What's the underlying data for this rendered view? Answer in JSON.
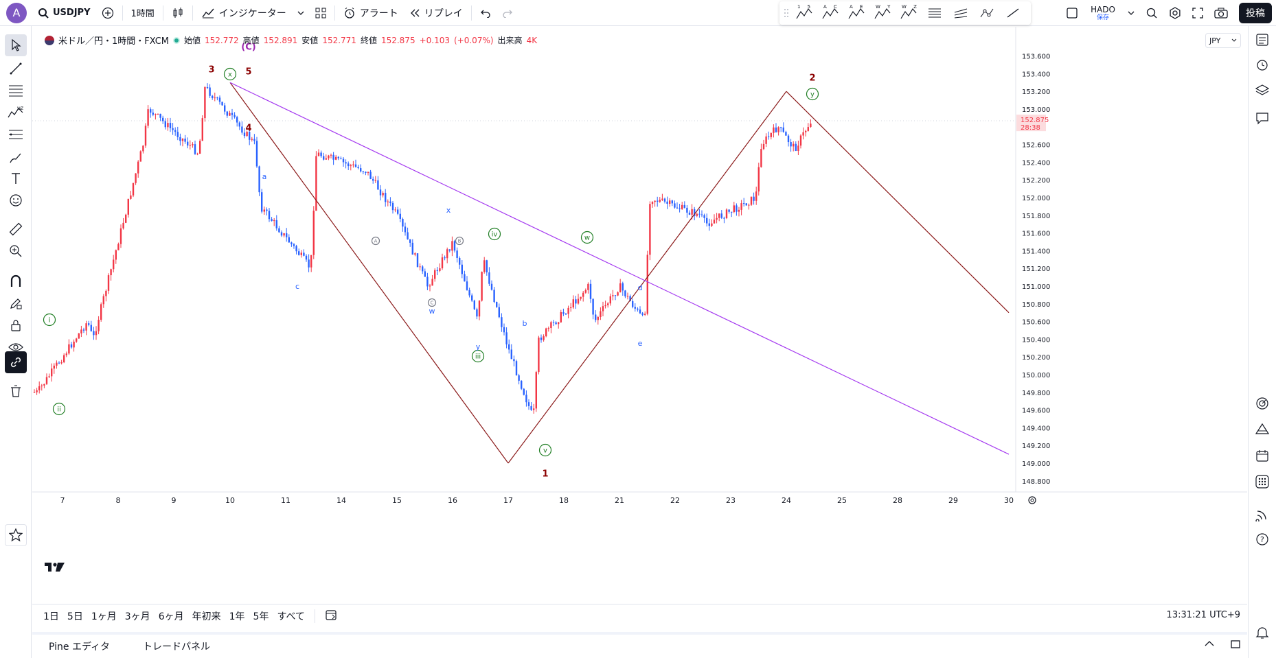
{
  "header": {
    "avatar_letter": "A",
    "symbol": "USDJPY",
    "interval": "1時間",
    "indicators_label": "インジケーター",
    "alert_label": "アラート",
    "replay_label": "リプレイ",
    "layout_name": "HADO",
    "layout_status": "保存",
    "post_label": "投稿",
    "drawing_tools": [
      {
        "icon": "elliott-impulse-icon",
        "label": "1 5"
      },
      {
        "icon": "elliott-correction-icon",
        "label": "A C"
      },
      {
        "icon": "elliott-triangle-icon",
        "label": "A E"
      },
      {
        "icon": "elliott-double-combo-icon",
        "label": "W Y"
      },
      {
        "icon": "elliott-triple-combo-icon",
        "label": "W Z"
      }
    ]
  },
  "legend": {
    "title": "米ドル／円・1時間・FXCM",
    "open_label": "始値",
    "open": "152.772",
    "high_label": "高値",
    "high": "152.891",
    "low_label": "安値",
    "low": "152.771",
    "close_label": "終値",
    "close": "152.875",
    "change": "+0.103",
    "change_pct": "(+0.07%)",
    "volume_label": "出来高",
    "volume": "4K"
  },
  "currency_button": "JPY",
  "price_tag": {
    "price": "152.875",
    "countdown": "28:38"
  },
  "range_bar": {
    "ranges": [
      "1日",
      "5日",
      "1ヶ月",
      "3ヶ月",
      "6ヶ月",
      "年初来",
      "1年",
      "5年",
      "すべて"
    ],
    "clock": "13:31:21 UTC+9"
  },
  "bottom_panel": {
    "tabs": [
      "Pine エディタ",
      "トレードパネル"
    ]
  },
  "colors": {
    "up": "#f23645",
    "down": "#2962ff",
    "wave_line": "#8b1a1a",
    "trend_line": "#a53bf0",
    "wave_green": "#1e7d22",
    "wave_blue": "#2962ff",
    "wave_red": "#8b0000",
    "wave_purple": "#9c27b0"
  },
  "chart_data": {
    "type": "candlestick",
    "symbol": "USDJPY",
    "interval": "1時間",
    "y_ticks": [
      153.6,
      153.4,
      153.2,
      153.0,
      152.6,
      152.4,
      152.2,
      152.0,
      151.8,
      151.6,
      151.4,
      151.2,
      151.0,
      150.8,
      150.6,
      150.4,
      150.2,
      150.0,
      149.8,
      149.6,
      149.4,
      149.2,
      149.0,
      148.8
    ],
    "x_ticks": [
      "7",
      "8",
      "9",
      "10",
      "11",
      "14",
      "15",
      "16",
      "17",
      "18",
      "21",
      "22",
      "23",
      "24",
      "25",
      "28",
      "29",
      "30"
    ],
    "last_price": 152.875,
    "price_path": [
      {
        "date": "7",
        "price": 149.8
      },
      {
        "date": "7",
        "price": 150.6
      },
      {
        "date": "8",
        "price": 150.4
      },
      {
        "date": "8",
        "price": 152.6
      },
      {
        "date": "9",
        "price": 153.0
      },
      {
        "date": "9",
        "price": 152.5
      },
      {
        "date": "10",
        "price": 153.25
      },
      {
        "date": "10",
        "price": 152.6
      },
      {
        "date": "11",
        "price": 151.9
      },
      {
        "date": "11",
        "price": 151.2
      },
      {
        "date": "14",
        "price": 152.5
      },
      {
        "date": "14",
        "price": 152.3
      },
      {
        "date": "15",
        "price": 151.8
      },
      {
        "date": "16",
        "price": 151.0
      },
      {
        "date": "16",
        "price": 151.5
      },
      {
        "date": "16",
        "price": 150.6
      },
      {
        "date": "17",
        "price": 151.3
      },
      {
        "date": "17",
        "price": 150.3
      },
      {
        "date": "17",
        "price": 149.5
      },
      {
        "date": "18",
        "price": 150.4
      },
      {
        "date": "18",
        "price": 151.0
      },
      {
        "date": "21",
        "price": 150.6
      },
      {
        "date": "21",
        "price": 151.0
      },
      {
        "date": "21",
        "price": 150.6
      },
      {
        "date": "22",
        "price": 152.0
      },
      {
        "date": "22",
        "price": 151.8
      },
      {
        "date": "23",
        "price": 151.7
      },
      {
        "date": "23",
        "price": 152.0
      },
      {
        "date": "24",
        "price": 152.6
      },
      {
        "date": "24",
        "price": 152.8
      },
      {
        "date": "24",
        "price": 152.55
      },
      {
        "date": "24",
        "price": 152.875
      }
    ],
    "wave_lines": [
      {
        "name": "5-to-1",
        "from": {
          "date": "10",
          "price": 153.3
        },
        "to": {
          "date": "17",
          "price": 149.0
        }
      },
      {
        "name": "1-to-2",
        "from": {
          "date": "17",
          "price": 149.0
        },
        "to": {
          "date": "24",
          "price": 153.2
        }
      },
      {
        "name": "2-onward",
        "from": {
          "date": "24",
          "price": 153.2
        },
        "to": {
          "date": "30",
          "price": 150.7
        }
      }
    ],
    "trend_line": {
      "from": {
        "date": "10",
        "price": 153.3
      },
      "to": {
        "date": "30",
        "price": 149.1
      }
    },
    "wave_labels": [
      {
        "text": "(C)",
        "color": "purple"
      },
      {
        "text": "3",
        "color": "red"
      },
      {
        "text": "5",
        "color": "red"
      },
      {
        "text": "4",
        "color": "red"
      },
      {
        "text": "1",
        "color": "red"
      },
      {
        "text": "2",
        "color": "red"
      },
      {
        "text": "i",
        "color": "green",
        "circled": true
      },
      {
        "text": "ii",
        "color": "green",
        "circled": true
      },
      {
        "text": "iii",
        "color": "green",
        "circled": true
      },
      {
        "text": "iv",
        "color": "green",
        "circled": true
      },
      {
        "text": "v",
        "color": "green",
        "circled": true
      },
      {
        "text": "x",
        "color": "green",
        "circled": true
      },
      {
        "text": "w",
        "color": "green",
        "circled": true
      },
      {
        "text": "y",
        "color": "green",
        "circled": true
      },
      {
        "text": "a",
        "color": "blue"
      },
      {
        "text": "b",
        "color": "blue"
      },
      {
        "text": "c",
        "color": "blue"
      },
      {
        "text": "d",
        "color": "blue"
      },
      {
        "text": "e",
        "color": "blue"
      },
      {
        "text": "w",
        "color": "blue"
      },
      {
        "text": "x",
        "color": "blue"
      },
      {
        "text": "y",
        "color": "blue"
      },
      {
        "text": "A",
        "color": "gray",
        "circled": true
      },
      {
        "text": "B",
        "color": "gray",
        "circled": true
      },
      {
        "text": "C",
        "color": "gray",
        "circled": true
      }
    ]
  }
}
